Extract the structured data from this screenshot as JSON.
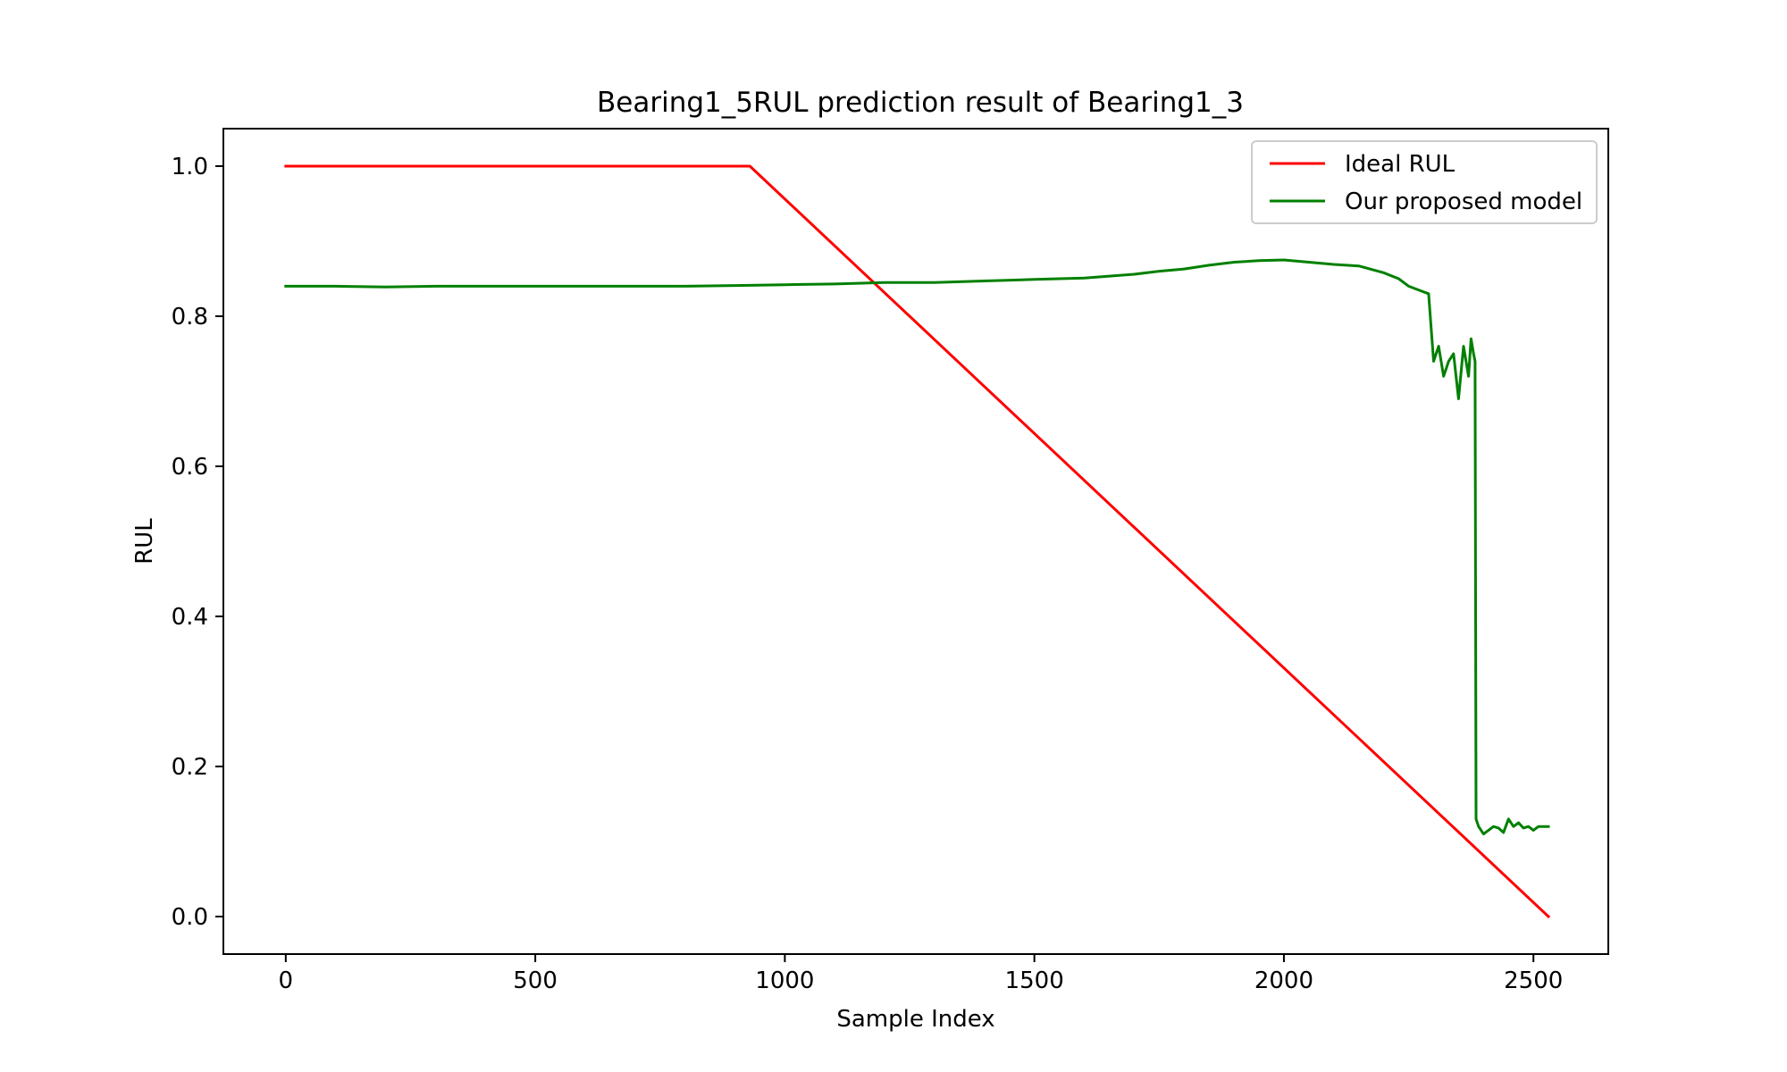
{
  "chart_data": {
    "type": "line",
    "title": "Bearing1_5RUL prediction result of Bearing1_3",
    "xlabel": "Sample Index",
    "ylabel": "RUL",
    "xlim": [
      -125,
      2650
    ],
    "ylim": [
      -0.05,
      1.05
    ],
    "xticks": [
      0,
      500,
      1000,
      1500,
      2000,
      2500
    ],
    "xtick_labels": [
      "0",
      "500",
      "1000",
      "1500",
      "2000",
      "2500"
    ],
    "yticks": [
      0.0,
      0.2,
      0.4,
      0.6,
      0.8,
      1.0
    ],
    "ytick_labels": [
      "0.0",
      "0.2",
      "0.4",
      "0.6",
      "0.8",
      "1.0"
    ],
    "grid": false,
    "legend_position": "top-right",
    "series": [
      {
        "name": "Ideal RUL",
        "color": "#ff0000",
        "x": [
          0,
          930,
          2530
        ],
        "y": [
          1.0,
          1.0,
          0.0
        ]
      },
      {
        "name": "Our proposed model",
        "color": "#008000",
        "x": [
          0,
          100,
          200,
          300,
          400,
          500,
          600,
          700,
          800,
          900,
          1000,
          1100,
          1200,
          1300,
          1400,
          1500,
          1600,
          1700,
          1750,
          1800,
          1850,
          1900,
          1950,
          2000,
          2050,
          2100,
          2150,
          2200,
          2230,
          2250,
          2270,
          2290,
          2300,
          2310,
          2320,
          2330,
          2340,
          2350,
          2360,
          2370,
          2375,
          2380,
          2383,
          2385,
          2390,
          2400,
          2410,
          2420,
          2430,
          2440,
          2450,
          2460,
          2470,
          2480,
          2490,
          2500,
          2510,
          2520,
          2530
        ],
        "y": [
          0.84,
          0.84,
          0.839,
          0.84,
          0.84,
          0.84,
          0.84,
          0.84,
          0.84,
          0.841,
          0.842,
          0.843,
          0.845,
          0.845,
          0.847,
          0.849,
          0.851,
          0.856,
          0.86,
          0.863,
          0.868,
          0.872,
          0.874,
          0.875,
          0.872,
          0.869,
          0.867,
          0.858,
          0.85,
          0.84,
          0.835,
          0.83,
          0.74,
          0.76,
          0.72,
          0.74,
          0.75,
          0.69,
          0.76,
          0.72,
          0.77,
          0.75,
          0.74,
          0.13,
          0.12,
          0.11,
          0.115,
          0.12,
          0.118,
          0.112,
          0.13,
          0.12,
          0.125,
          0.118,
          0.12,
          0.115,
          0.12,
          0.12,
          0.12
        ]
      }
    ]
  }
}
